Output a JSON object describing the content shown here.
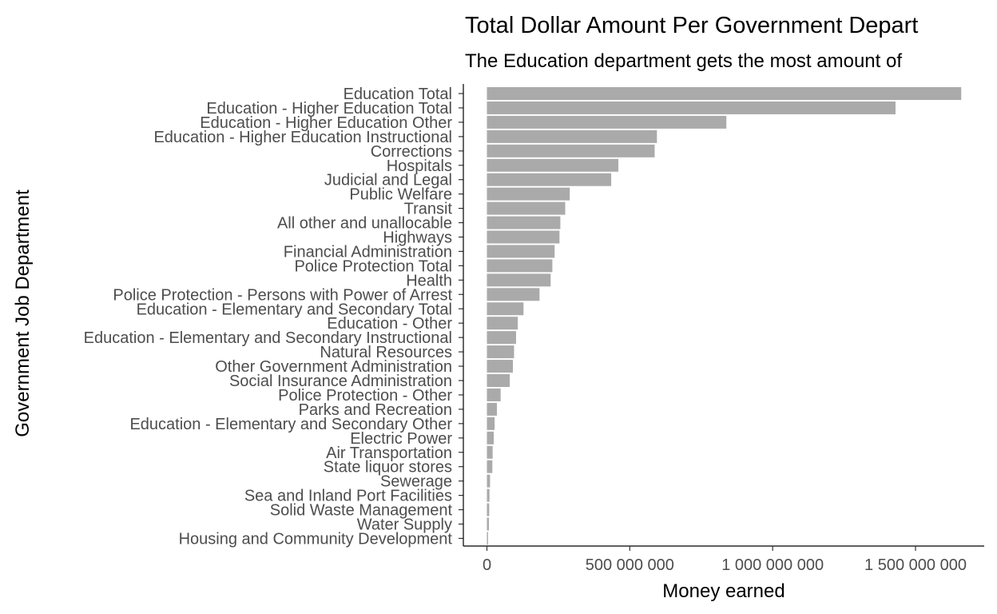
{
  "chart_data": {
    "type": "bar",
    "orientation": "horizontal",
    "title": "Total Dollar Amount Per Government Depart",
    "subtitle": "The Education department gets the most amount of",
    "xlabel": "Money earned",
    "ylabel": "Government Job Department",
    "xlim": [
      0,
      1700000000
    ],
    "x_ticks": [
      0,
      500000000,
      1000000000,
      1500000000
    ],
    "x_tick_labels": [
      "0",
      "500 000 000",
      "1 000 000 000",
      "1 500 000 000"
    ],
    "grid": false,
    "legend": "none",
    "bar_color": "#aaaaaa",
    "categories": [
      "Education Total",
      "Education - Higher Education Total",
      "Education - Higher Education Other",
      "Education - Higher Education Instructional",
      "Corrections",
      "Hospitals",
      "Judicial and Legal",
      "Public Welfare",
      "Transit",
      "All other and unallocable",
      "Highways",
      "Financial Administration",
      "Police Protection Total",
      "Health",
      "Police Protection - Persons with Power of Arrest",
      "Education - Elementary and Secondary Total",
      "Education - Other",
      "Education - Elementary and Secondary Instructional",
      "Natural Resources",
      "Other Government Administration",
      "Social Insurance Administration",
      "Police Protection - Other",
      "Parks and Recreation",
      "Education - Elementary and Secondary Other",
      "Electric Power",
      "Air Transportation",
      "State liquor stores",
      "Sewerage",
      "Sea and Inland Port Facilities",
      "Solid Waste Management",
      "Water Supply",
      "Housing and Community Development"
    ],
    "values": [
      1660000000,
      1430000000,
      838000000,
      595000000,
      587000000,
      460000000,
      435000000,
      290000000,
      274000000,
      257000000,
      254000000,
      237000000,
      229000000,
      223000000,
      184000000,
      128000000,
      108000000,
      102000000,
      95000000,
      91000000,
      80000000,
      48000000,
      35000000,
      27000000,
      24000000,
      20000000,
      19000000,
      11000000,
      9000000,
      8000000,
      7000000,
      4000000
    ]
  }
}
